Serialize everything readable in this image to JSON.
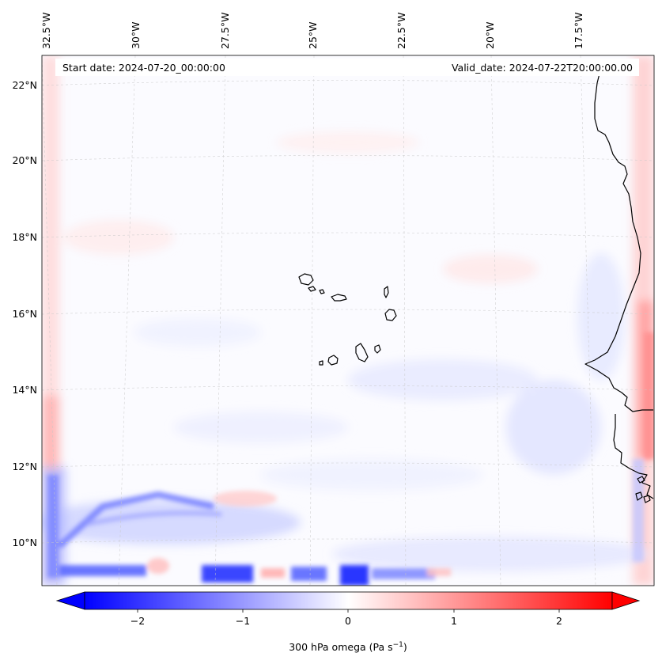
{
  "header": {
    "start_label": "Start date: 2024-07-20_00:00:00",
    "valid_label": "Valid_date: 2024-07-22T20:00:00.00"
  },
  "map": {
    "variable": "300 hPa omega",
    "units": "Pa s⁻¹",
    "lon_labels": [
      "32.5°W",
      "30°W",
      "27.5°W",
      "25°W",
      "22.5°W",
      "20°W",
      "17.5°W"
    ],
    "lat_labels": [
      "22°N",
      "20°N",
      "18°N",
      "16°N",
      "14°N",
      "12°N",
      "10°N"
    ],
    "lat_values": [
      22,
      20,
      18,
      16,
      14,
      12,
      10
    ],
    "lon_values": [
      -32.5,
      -30,
      -27.5,
      -25,
      -22.5,
      -20,
      -17.5
    ],
    "extent": {
      "lon_min": -33,
      "lon_max": -15.8,
      "lat_min": 9,
      "lat_max": 23
    },
    "gridlines": true,
    "colormap": "bwr",
    "color_negative": "#0000ff",
    "color_zero": "#ffffff",
    "color_positive": "#ff0000"
  },
  "colorbar": {
    "label_main": "300 hPa omega (Pa s",
    "label_exp": "−1",
    "label_close": ")",
    "ticks": [
      {
        "value": -2,
        "label": "−2"
      },
      {
        "value": -1,
        "label": "−1"
      },
      {
        "value": 0,
        "label": "0"
      },
      {
        "value": 1,
        "label": "1"
      },
      {
        "value": 2,
        "label": "2"
      }
    ],
    "vmin": -2.5,
    "vmax": 2.5,
    "extend": "both"
  }
}
